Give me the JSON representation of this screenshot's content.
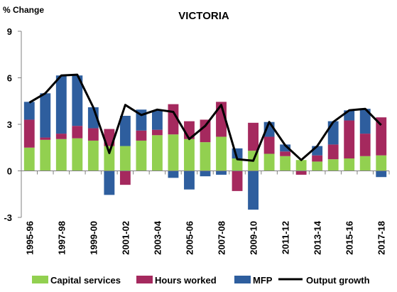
{
  "chart_data": {
    "type": "bar",
    "stacked": true,
    "title": "VICTORIA",
    "ylabel": "% Change",
    "xlabel": "",
    "ylim": [
      -3,
      9
    ],
    "yticks": [
      -3,
      0,
      3,
      6,
      9
    ],
    "grid": false,
    "legend_position": "bottom",
    "categories": [
      "1995-96",
      "1996-97",
      "1997-98",
      "1998-99",
      "1999-00",
      "2000-01",
      "2001-02",
      "2002-03",
      "2003-04",
      "2004-05",
      "2005-06",
      "2006-07",
      "2007-08",
      "2008-09",
      "2009-10",
      "2010-11",
      "2011-12",
      "2012-13",
      "2013-14",
      "2014-15",
      "2015-16",
      "2016-17",
      "2017-18"
    ],
    "tick_labels": [
      "1995-96",
      "1997-98",
      "1999-00",
      "2001-02",
      "2003-04",
      "2005-06",
      "2007-08",
      "2009-10",
      "2011-12",
      "2013-14",
      "2015-16",
      "2017-18"
    ],
    "series": [
      {
        "name": "Capital services",
        "kind": "bar",
        "color": "#92d050",
        "values": [
          1.5,
          2.0,
          2.05,
          2.1,
          1.95,
          1.6,
          1.6,
          1.95,
          2.3,
          2.35,
          2.05,
          1.85,
          2.2,
          0.8,
          1.3,
          1.1,
          0.95,
          0.7,
          0.6,
          0.75,
          0.8,
          0.95,
          1.0
        ]
      },
      {
        "name": "Hours worked",
        "kind": "bar",
        "color": "#a5295e",
        "values": [
          1.8,
          0.15,
          0.35,
          0.8,
          0.8,
          1.1,
          -0.9,
          0.65,
          0.35,
          1.95,
          1.15,
          1.45,
          2.25,
          -1.3,
          1.8,
          1.1,
          0.3,
          -0.25,
          0.4,
          0.95,
          2.45,
          1.45,
          2.45
        ]
      },
      {
        "name": "MFP",
        "kind": "bar",
        "color": "#2e5e9e",
        "values": [
          1.15,
          2.85,
          3.75,
          3.25,
          1.35,
          -1.55,
          1.95,
          1.35,
          1.25,
          -0.45,
          -1.2,
          -0.35,
          -0.25,
          0.65,
          -2.5,
          0.95,
          0.45,
          0.0,
          0.6,
          1.5,
          0.65,
          1.6,
          -0.4
        ]
      },
      {
        "name": "Output growth",
        "kind": "line",
        "color": "#000000",
        "values": [
          4.4,
          5.0,
          6.15,
          6.2,
          4.1,
          1.15,
          4.25,
          3.6,
          3.95,
          3.8,
          2.05,
          2.9,
          4.25,
          0.75,
          0.65,
          3.15,
          1.65,
          0.7,
          1.6,
          3.15,
          3.9,
          4.0,
          2.95
        ]
      }
    ]
  }
}
